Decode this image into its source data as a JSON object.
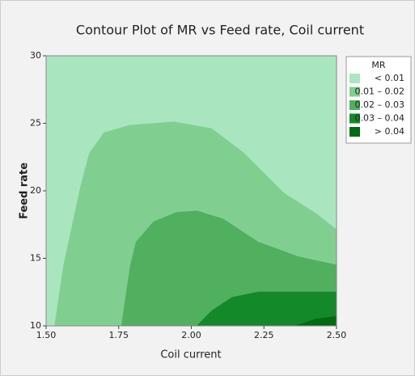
{
  "chart_data": {
    "type": "contour",
    "title": "Contour Plot of MR vs Feed rate, Coil current",
    "x_label": "Coil current",
    "y_label": "Feed rate",
    "legend_title": "MR",
    "xlim": [
      1.5,
      2.5
    ],
    "ylim": [
      10,
      30
    ],
    "xticks": [
      {
        "value": 1.5,
        "label": "1.50"
      },
      {
        "value": 1.75,
        "label": "1.75"
      },
      {
        "value": 2.0,
        "label": "2.00"
      },
      {
        "value": 2.25,
        "label": "2.25"
      },
      {
        "value": 2.5,
        "label": "2.50"
      }
    ],
    "yticks": [
      10,
      15,
      20,
      25,
      30
    ],
    "series": [
      {
        "name": "< 0.01",
        "color": "#a9e6c0"
      },
      {
        "name": "0.01 – 0.02",
        "color": "#80cf90",
        "x": [
          1.53,
          1.56,
          1.62,
          1.65,
          1.7,
          1.79,
          1.94,
          2.07,
          2.18,
          2.32,
          2.43,
          2.5
        ],
        "y": [
          10,
          14.4,
          20.4,
          22.8,
          24.3,
          24.85,
          25.1,
          24.6,
          22.8,
          19.8,
          18.3,
          17.1
        ]
      },
      {
        "name": "0.02 – 0.03",
        "color": "#50b060",
        "x": [
          1.76,
          1.79,
          1.81,
          1.87,
          1.95,
          2.02,
          2.11,
          2.23,
          2.37,
          2.5
        ],
        "y": [
          10,
          14.4,
          16.2,
          17.7,
          18.4,
          18.5,
          17.9,
          16.2,
          15.1,
          14.5
        ]
      },
      {
        "name": "0.03 – 0.04",
        "color": "#13892a",
        "x": [
          2.02,
          2.07,
          2.14,
          2.23,
          2.5
        ],
        "y": [
          10,
          11.1,
          12.1,
          12.5,
          12.5
        ]
      },
      {
        "name": "> 0.04",
        "color": "#006b12",
        "x": [
          2.36,
          2.43,
          2.5
        ],
        "y": [
          10,
          10.5,
          10.7
        ]
      }
    ]
  }
}
